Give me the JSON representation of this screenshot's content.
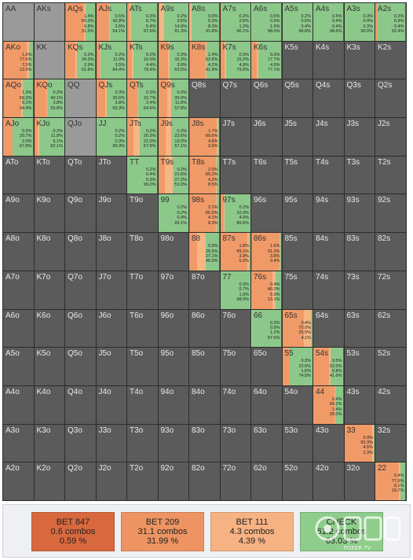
{
  "colors": {
    "bet847": "#e26a3b",
    "bet209": "#f09a68",
    "bet111": "#f6b684",
    "check": "#8cc88a",
    "empty": "#5b5b5b",
    "blank": "#9a9a9a"
  },
  "legend": [
    {
      "label": "BET 847",
      "combos": "0.6 combos",
      "pct": "0.59 %",
      "color": "#d9683e"
    },
    {
      "label": "BET 209",
      "combos": "31.1 combos",
      "pct": "31.99 %",
      "color": "#ee9463"
    },
    {
      "label": "BET 111",
      "combos": "4.3 combos",
      "pct": "4.39 %",
      "color": "#f7b283"
    },
    {
      "label": "CHECK",
      "combos": "61.2 combos",
      "pct": "63.03 %",
      "color": "#8fcd8c"
    }
  ],
  "watermark_text": "POKER.TV",
  "ranks": [
    "A",
    "K",
    "Q",
    "J",
    "T",
    "9",
    "8",
    "7",
    "6",
    "5",
    "4",
    "3",
    "2"
  ],
  "cells": {
    "AQs": {
      "mix": [
        1.4,
        60.3,
        6.8,
        31.5
      ],
      "stats": [
        "1.4%",
        "60.3%",
        "6.8%",
        "31.5%"
      ]
    },
    "AJs": {
      "mix": [
        0.5,
        42.8,
        2.6,
        54.1
      ],
      "stats": [
        "0.5%",
        "42.8%",
        "2.6%",
        "54.1%"
      ]
    },
    "ATs": {
      "mix": [
        0.3,
        6.7,
        5.4,
        87.6
      ],
      "stats": [
        "0.3%",
        "6.7%",
        "5.4%",
        "87.6%"
      ]
    },
    "A9s": {
      "mix": [
        0.2,
        3.5,
        14.9,
        81.3
      ],
      "stats": [
        "0.2%",
        "3.5%",
        "14.9%",
        "81.3%"
      ]
    },
    "A8s": {
      "mix": [
        0.6,
        0.3,
        8.3,
        91.8
      ],
      "stats": [
        "0.6%",
        "0.3%",
        "8.3%",
        "91.8%"
      ]
    },
    "A7s": {
      "mix": [
        0.2,
        2.5,
        1.2,
        96.1
      ],
      "stats": [
        "0.2%",
        "2.5%",
        "1.2%",
        "96.1%"
      ]
    },
    "A6s": {
      "mix": [
        0.5,
        0.5,
        1.0,
        98.0
      ],
      "stats": [
        "0.5%",
        "0.5%",
        "1.0%",
        "98.0%"
      ]
    },
    "A5s": {
      "mix": [
        0.2,
        0.5,
        0.4,
        98.8
      ],
      "stats": [
        "0.2%",
        "0.5%",
        "0.4%",
        "98.8%"
      ]
    },
    "A4s": {
      "mix": [
        0.5,
        0.4,
        0.4,
        98.6
      ],
      "stats": [
        "0.5%",
        "0.4%",
        "0.4%",
        "98.6%"
      ]
    },
    "A3s": {
      "mix": [
        0.3,
        0.4,
        0.3,
        99.0
      ],
      "stats": [
        "0.3%",
        "0.4%",
        "0.3%",
        "99.0%"
      ]
    },
    "A2s": {
      "mix": [
        0.3,
        6.9,
        0.4,
        92.4
      ],
      "stats": [
        "0.3%",
        "6.9%",
        "0.4%",
        "92.4%"
      ]
    },
    "AKo": {
      "mix": [
        1.6,
        77.6,
        7.0,
        13.9
      ],
      "stats": [
        "1.6%",
        "77.6%",
        "7.0%",
        "13.9%"
      ]
    },
    "KQs": {
      "mix": [
        0.3,
        34.3,
        2.9,
        61.8
      ],
      "stats": [
        "0.3%",
        "34.3%",
        "2.9%",
        "61.8%"
      ]
    },
    "KJs": {
      "mix": [
        0.2,
        11.9,
        3.5,
        84.4
      ],
      "stats": [
        "0.2%",
        "11.9%",
        "3.5%",
        "84.4%"
      ]
    },
    "KTs": {
      "mix": [
        0.2,
        16.0,
        4.4,
        79.4
      ],
      "stats": [
        "0.2%",
        "16.0%",
        "4.4%",
        "79.4%"
      ]
    },
    "K9s": {
      "mix": [
        0.3,
        32.3,
        3.9,
        63.5
      ],
      "stats": [
        "0.3%",
        "32.3%",
        "3.9%",
        "63.5%"
      ]
    },
    "K8s": {
      "mix": [
        1.4,
        52.6,
        4.2,
        41.8
      ],
      "stats": [
        "1.4%",
        "52.6%",
        "4.2%",
        "41.8%"
      ]
    },
    "K7s": {
      "mix": [
        0.3,
        15.2,
        4.9,
        79.6
      ],
      "stats": [
        "0.3%",
        "15.2%",
        "4.9%",
        "79.6%"
      ]
    },
    "K6s": {
      "mix": [
        0.3,
        17.7,
        4.9,
        77.1
      ],
      "stats": [
        "0.3%",
        "17.7%",
        "4.9%",
        "77.1%"
      ]
    },
    "AQo": {
      "mix": [
        1.3,
        58.2,
        6.1,
        34.4
      ],
      "stats": [
        "1.3%",
        "58.2%",
        "6.1%",
        "34.4%"
      ]
    },
    "KQo": {
      "mix": [
        0.2,
        40.1,
        3.8,
        55.8
      ],
      "stats": [
        "0.2%",
        "40.1%",
        "3.8%",
        "55.8%"
      ]
    },
    "QJs": {
      "mix": [
        0.3,
        30.6,
        3.8,
        65.3
      ],
      "stats": [
        "0.3%",
        "30.6%",
        "3.8%",
        "65.3%"
      ]
    },
    "QTs": {
      "mix": [
        0.3,
        32.7,
        2.4,
        64.6
      ],
      "stats": [
        "0.3%",
        "32.7%",
        "2.4%",
        "64.6%"
      ]
    },
    "Q9s": {
      "mix": [
        0.3,
        30.0,
        11.8,
        57.8
      ],
      "stats": [
        "0.3%",
        "30.0%",
        "11.8%",
        "57.8%"
      ]
    },
    "AJo": {
      "mix": [
        0.5,
        29.7,
        2.0,
        67.8
      ],
      "stats": [
        "0.5%",
        "29.7%",
        "2.0%",
        "67.8%"
      ]
    },
    "KJo": {
      "mix": [
        0.2,
        11.8,
        6.1,
        82.1
      ],
      "stats": [
        "0.2%",
        "11.8%",
        "6.1%",
        "82.1%"
      ]
    },
    "JTs": {
      "mix": [
        0.2,
        20.3,
        21.0,
        57.9
      ],
      "stats": [
        "0.2%",
        "20.3%",
        "21.0%",
        "57.9%"
      ]
    },
    "J9s": {
      "mix": [
        0.3,
        23.6,
        19.0,
        57.1
      ],
      "stats": [
        "0.3%",
        "23.6%",
        "19.0%",
        "57.1%"
      ]
    },
    "J8s": {
      "mix": [
        1.7,
        89.6,
        4.8,
        3.9
      ],
      "stats": [
        "1.7%",
        "89.6%",
        "4.8%",
        "3.9%"
      ]
    },
    "T9s": {
      "mix": [
        0.2,
        21.6,
        27.2,
        51.0
      ],
      "stats": [
        "0.2%",
        "21.6%",
        "27.2%",
        "51.0%"
      ]
    },
    "T8s": {
      "mix": [
        2.0,
        85.2,
        4.2,
        8.5
      ],
      "stats": [
        "2.0%",
        "85.2%",
        "4.2%",
        "8.5%"
      ]
    },
    "98s": {
      "mix": [
        2.1,
        85.5,
        4.1,
        8.3
      ],
      "stats": [
        "2.1%",
        "85.5%",
        "4.1%",
        "8.3%"
      ]
    },
    "97s": {
      "mix": [
        0.2,
        10.3,
        4.0,
        85.6
      ],
      "stats": [
        "0.2%",
        "10.3%",
        "4.0%",
        "85.6%"
      ]
    },
    "87s": {
      "mix": [
        1.8,
        89.1,
        3.9,
        5.2
      ],
      "stats": [
        "1.8%",
        "89.1%",
        "3.9%",
        "5.2%"
      ]
    },
    "86s": {
      "mix": [
        1.6,
        91.3,
        3.8,
        3.4
      ],
      "stats": [
        "1.6%",
        "91.3%",
        "3.8%",
        "3.4%"
      ]
    },
    "88": {
      "mix": [
        0.9,
        25.5,
        27.1,
        46.5
      ],
      "stats": [
        "0.9%",
        "25.5%",
        "27.1%",
        "46.5%"
      ]
    },
    "99": {
      "mix": [
        0.2,
        0.2,
        0.4,
        99.1
      ],
      "stats": [
        "0.2%",
        "0.2%",
        "0.4%",
        "99.1%"
      ]
    },
    "TT": {
      "mix": [
        0.2,
        0.4,
        0.3,
        99.2
      ],
      "stats": [
        "0.2%",
        "0.4%",
        "0.3%",
        "99.2%"
      ]
    },
    "JJ": {
      "mix": [
        0.2,
        0.2,
        0.3,
        99.3
      ],
      "stats": [
        "0.2%",
        "0.2%",
        "0.3%",
        "99.3%"
      ]
    },
    "77": {
      "mix": [
        0.3,
        0.7,
        1.0,
        98.0
      ],
      "stats": [
        "0.3%",
        "0.7%",
        "1.0%",
        "98.0%"
      ]
    },
    "76s": {
      "mix": [
        0.4,
        46.0,
        5.9,
        13.1
      ],
      "stats": [
        "0.4%",
        "46.0%",
        "5.9%",
        "13.1%"
      ]
    },
    "66": {
      "mix": [
        0.3,
        0.9,
        1.2,
        97.6
      ],
      "stats": [
        "0.3%",
        "0.9%",
        "1.2%",
        "97.6%"
      ]
    },
    "65s": {
      "mix": [
        0.4,
        70.0,
        25.5,
        4.1
      ],
      "stats": [
        "0.4%",
        "70.0%",
        "25.5%",
        "4.1%"
      ]
    },
    "55": {
      "mix": [
        0.3,
        23.6,
        1.6,
        74.5
      ],
      "stats": [
        "0.3%",
        "23.6%",
        "1.6%",
        "74.5%"
      ]
    },
    "54s": {
      "mix": [
        0.5,
        52.0,
        5.8,
        41.6
      ],
      "stats": [
        "0.5%",
        "52.0%",
        "5.8%",
        "41.6%"
      ]
    },
    "44": {
      "mix": [
        0.4,
        69.2,
        2.4,
        28.0
      ],
      "stats": [
        "0.4%",
        "69.2%",
        "2.4%",
        "28.0%"
      ]
    },
    "33": {
      "mix": [
        0.9,
        92.3,
        4.5,
        2.3
      ],
      "stats": [
        "0.9%",
        "92.3%",
        "4.5%",
        "2.3%"
      ]
    },
    "22": {
      "mix": [
        0.4,
        77.9,
        5.1,
        16.7
      ],
      "stats": [
        "0.4%",
        "77.9%",
        "5.1%",
        "16.7%"
      ]
    }
  },
  "blank_cells": [
    "AA",
    "AKs",
    "KK",
    "QQ",
    "QJo",
    "JJ_",
    "QQ_"
  ]
}
